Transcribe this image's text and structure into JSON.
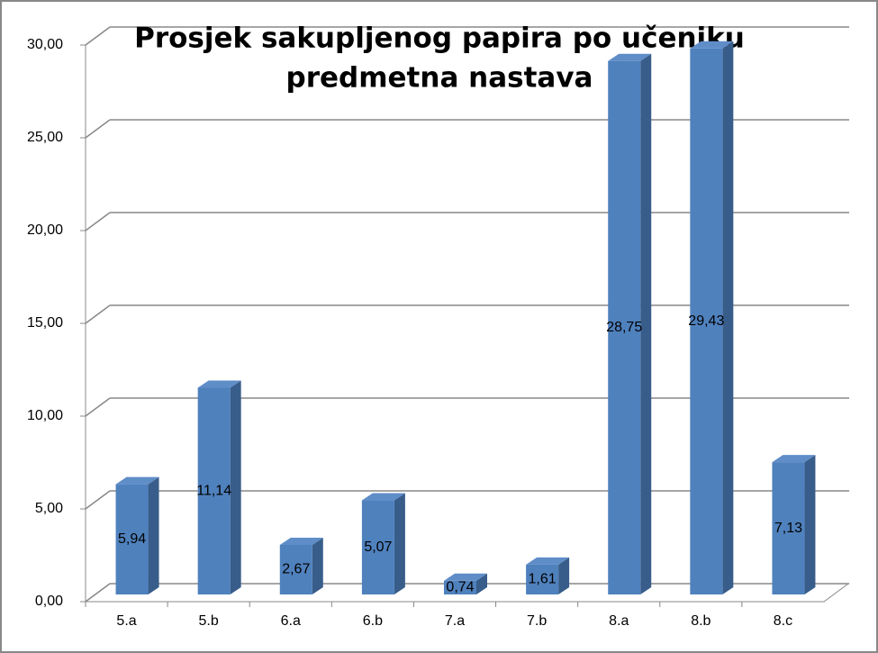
{
  "chart_data": {
    "type": "bar3d",
    "title_lines": [
      "Prosjek sakupljenog papira po učeniku",
      "predmetna nastava"
    ],
    "categories": [
      "5.a",
      "5.b",
      "6.a",
      "6.b",
      "7.a",
      "7.b",
      "8.a",
      "8.b",
      "8.c"
    ],
    "values": [
      5.94,
      11.14,
      2.67,
      5.07,
      0.74,
      1.61,
      28.75,
      29.43,
      7.13
    ],
    "value_labels": [
      "5,94",
      "11,14",
      "2,67",
      "5,07",
      "0,74",
      "1,61",
      "28,75",
      "29,43",
      "7,13"
    ],
    "color": "#4f81bd",
    "ylim": [
      0,
      30
    ],
    "yticks": [
      {
        "value": 0,
        "label": "0,00"
      },
      {
        "value": 5,
        "label": "5,00"
      },
      {
        "value": 10,
        "label": "10,00"
      },
      {
        "value": 15,
        "label": "15,00"
      },
      {
        "value": 20,
        "label": "20,00"
      },
      {
        "value": 25,
        "label": "25,00"
      },
      {
        "value": 30,
        "label": "30,00"
      }
    ],
    "grid": true
  }
}
